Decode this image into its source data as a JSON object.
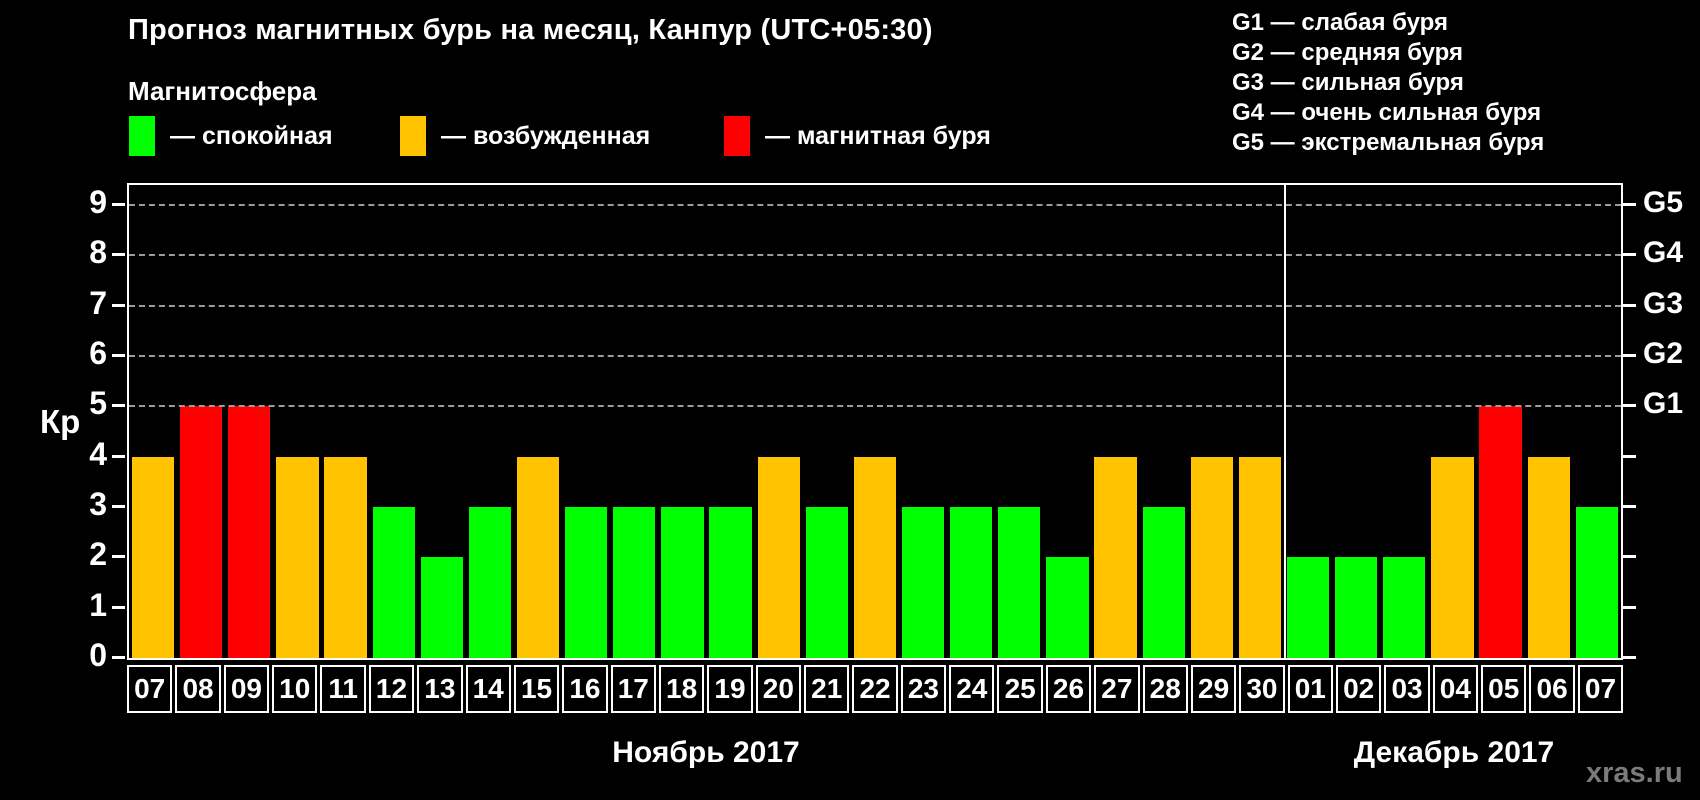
{
  "title": "Прогноз магнитных бурь на месяц, Канпур (UTC+05:30)",
  "legend": {
    "title": "Магнитосфера",
    "items": [
      {
        "name": "quiet",
        "label": "— спокойная",
        "color": "#00ff00"
      },
      {
        "name": "excited",
        "label": "— возбужденная",
        "color": "#ffc300"
      },
      {
        "name": "storm",
        "label": "— магнитная буря",
        "color": "#ff0000"
      }
    ]
  },
  "g_scale_legend": [
    {
      "label": "G1 — слабая буря"
    },
    {
      "label": "G2 — средняя буря"
    },
    {
      "label": "G3 — сильная буря"
    },
    {
      "label": "G4 — очень сильная буря"
    },
    {
      "label": "G5 — экстремальная буря"
    }
  ],
  "watermark": "xras.ru",
  "chart_data": {
    "type": "bar",
    "title": "Прогноз магнитных бурь на месяц, Канпур (UTC+05:30)",
    "ylabel": "Кр",
    "ylim": [
      0,
      9.4
    ],
    "yticks": [
      0,
      1,
      2,
      3,
      4,
      5,
      6,
      7,
      8,
      9
    ],
    "gridlines_at": [
      5,
      6,
      7,
      8,
      9
    ],
    "grid_style": "dashed",
    "legend_position": "top",
    "right_axis": [
      {
        "value": 5,
        "label": "G1"
      },
      {
        "value": 6,
        "label": "G2"
      },
      {
        "value": 7,
        "label": "G3"
      },
      {
        "value": 8,
        "label": "G4"
      },
      {
        "value": 9,
        "label": "G5"
      }
    ],
    "color_map": {
      "quiet": "#00ff00",
      "excited": "#ffc300",
      "storm": "#ff0000"
    },
    "months": [
      {
        "label": "Ноябрь 2017",
        "days": 24
      },
      {
        "label": "Декабрь 2017",
        "days": 7
      }
    ],
    "categories": [
      "07",
      "08",
      "09",
      "10",
      "11",
      "12",
      "13",
      "14",
      "15",
      "16",
      "17",
      "18",
      "19",
      "20",
      "21",
      "22",
      "23",
      "24",
      "25",
      "26",
      "27",
      "28",
      "29",
      "30",
      "01",
      "02",
      "03",
      "04",
      "05",
      "06",
      "07"
    ],
    "values": [
      4,
      5,
      5,
      4,
      4,
      3,
      2,
      3,
      4,
      3,
      3,
      3,
      3,
      4,
      3,
      4,
      3,
      3,
      3,
      2,
      4,
      3,
      4,
      4,
      2,
      2,
      2,
      4,
      5,
      4,
      3
    ],
    "statuses": [
      "excited",
      "storm",
      "storm",
      "excited",
      "excited",
      "quiet",
      "quiet",
      "quiet",
      "excited",
      "quiet",
      "quiet",
      "quiet",
      "quiet",
      "excited",
      "quiet",
      "excited",
      "quiet",
      "quiet",
      "quiet",
      "quiet",
      "excited",
      "quiet",
      "excited",
      "excited",
      "quiet",
      "quiet",
      "quiet",
      "excited",
      "storm",
      "excited",
      "quiet"
    ]
  }
}
